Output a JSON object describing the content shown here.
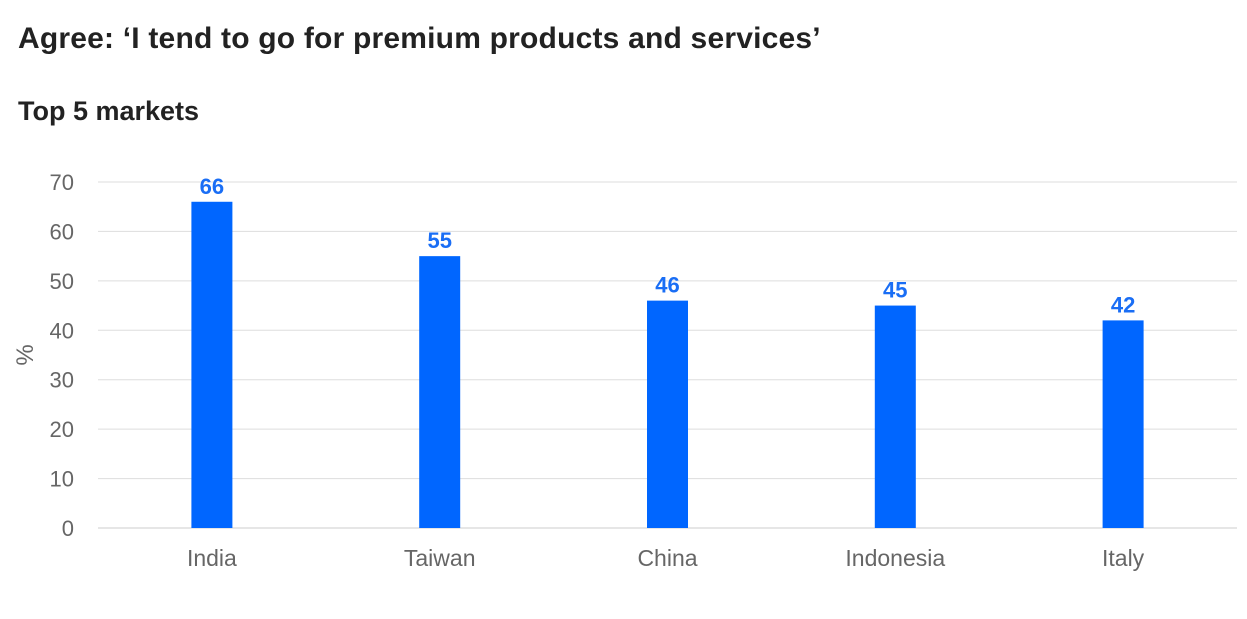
{
  "chart_data": {
    "type": "bar",
    "title": "Agree: ‘I tend to go for premium products and services’",
    "subtitle": "Top 5 markets",
    "xlabel": "",
    "ylabel": "%",
    "categories": [
      "India",
      "Taiwan",
      "China",
      "Indonesia",
      "Italy"
    ],
    "values": [
      66,
      55,
      46,
      45,
      42
    ],
    "ylim": [
      0,
      70
    ],
    "yticks": [
      0,
      10,
      20,
      30,
      40,
      50,
      60,
      70
    ],
    "grid": true,
    "legend": "none",
    "data_labels": true,
    "colors": {
      "bar": "#0066ff",
      "value_label": "#1a6ef5",
      "grid": "#dddddd",
      "text": "#666666",
      "title": "#222222"
    }
  }
}
